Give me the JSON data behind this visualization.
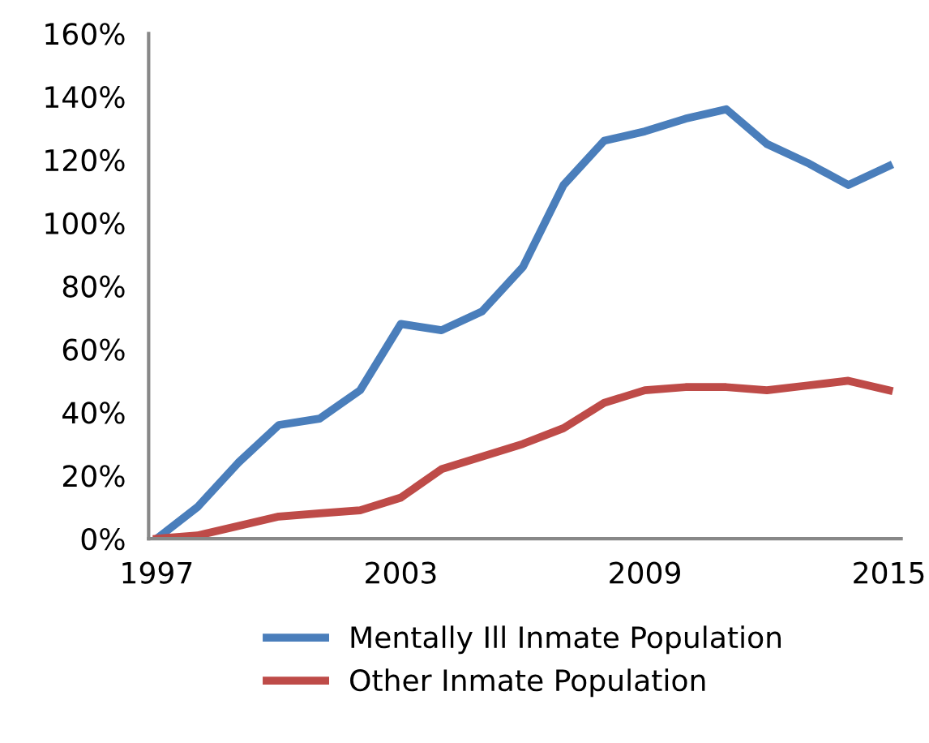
{
  "chart_data": {
    "type": "line",
    "x": [
      1997,
      1998,
      1999,
      2000,
      2001,
      2002,
      2003,
      2004,
      2005,
      2006,
      2007,
      2008,
      2009,
      2010,
      2011,
      2012,
      2013,
      2014,
      2015
    ],
    "series": [
      {
        "name": "Mentally Ill Inmate Population",
        "color": "#4a7ebb",
        "values": [
          0,
          10,
          24,
          36,
          38,
          47,
          68,
          66,
          72,
          86,
          112,
          126,
          129,
          133,
          136,
          125,
          119,
          112,
          118
        ]
      },
      {
        "name": "Other Inmate Population",
        "color": "#be4b48",
        "values": [
          0,
          1,
          4,
          7,
          8,
          9,
          13,
          22,
          26,
          30,
          35,
          43,
          47,
          48,
          48,
          47,
          48.5,
          50,
          47
        ]
      }
    ],
    "xlim": [
      1996.8,
      2015.3
    ],
    "xticks": [
      1997,
      2003,
      2009,
      2015
    ],
    "ylim": [
      0,
      160
    ],
    "yticks": [
      {
        "value": 0,
        "label": "0%"
      },
      {
        "value": 20,
        "label": "20%"
      },
      {
        "value": 40,
        "label": "40%"
      },
      {
        "value": 60,
        "label": "60%"
      },
      {
        "value": 80,
        "label": "80%"
      },
      {
        "value": 100,
        "label": "100%"
      },
      {
        "value": 120,
        "label": "120%"
      },
      {
        "value": 140,
        "label": "140%"
      },
      {
        "value": 160,
        "label": "160%"
      }
    ],
    "grid": false,
    "legend": "bottom",
    "line_style": "solid",
    "marker": "none"
  }
}
